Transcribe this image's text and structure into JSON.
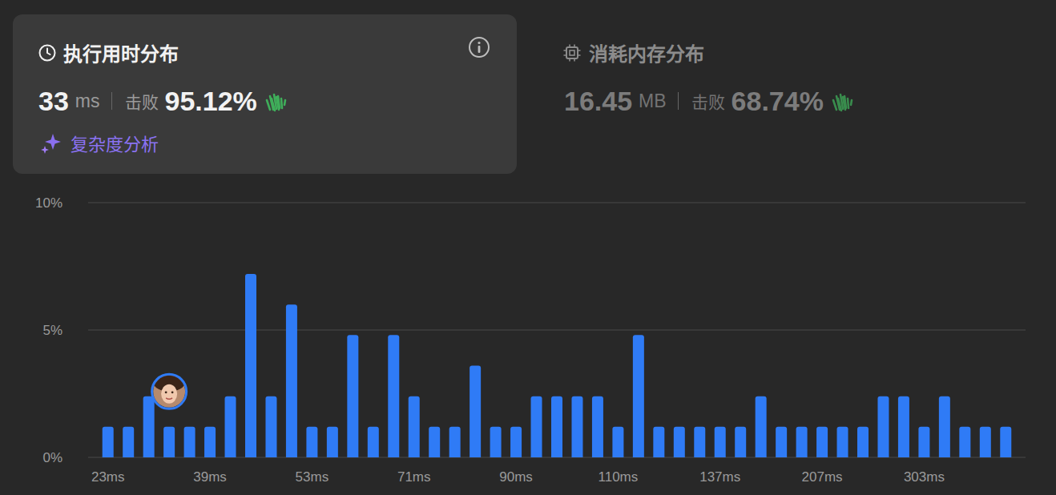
{
  "header": {
    "runtime": {
      "title": "执行用时分布",
      "value": "33",
      "unit": "ms",
      "beat_label": "击败",
      "beat": "95.12%",
      "analysis": "复杂度分析"
    },
    "memory": {
      "title": "消耗内存分布",
      "value": "16.45",
      "unit": "MB",
      "beat_label": "击败",
      "beat": "68.74%"
    }
  },
  "chart_data": {
    "type": "bar",
    "color": "#2f7bf6",
    "grid": true,
    "categories": [
      "23ms",
      null,
      null,
      null,
      null,
      "39ms",
      null,
      null,
      null,
      null,
      "53ms",
      null,
      null,
      null,
      null,
      "71ms",
      null,
      null,
      null,
      null,
      "90ms",
      null,
      null,
      null,
      null,
      "110ms",
      null,
      null,
      null,
      null,
      "137ms",
      null,
      null,
      null,
      null,
      "207ms",
      null,
      null,
      null,
      null,
      "303ms",
      null,
      null,
      null,
      null
    ],
    "values": [
      1.2,
      1.2,
      2.4,
      1.2,
      1.2,
      1.2,
      2.4,
      7.2,
      2.4,
      6.0,
      1.2,
      1.2,
      4.8,
      1.2,
      4.8,
      2.4,
      1.2,
      1.2,
      3.6,
      1.2,
      1.2,
      2.4,
      2.4,
      2.4,
      2.4,
      1.2,
      4.8,
      1.2,
      1.2,
      1.2,
      1.2,
      1.2,
      2.4,
      1.2,
      1.2,
      1.2,
      1.2,
      1.2,
      2.4,
      2.4,
      1.2,
      2.4,
      1.2,
      1.2,
      1.2
    ],
    "ylim": [
      0,
      10
    ],
    "yticks": [
      {
        "value": 0,
        "label": "0%"
      },
      {
        "value": 5,
        "label": "5%"
      },
      {
        "value": 10,
        "label": "10%"
      }
    ]
  }
}
